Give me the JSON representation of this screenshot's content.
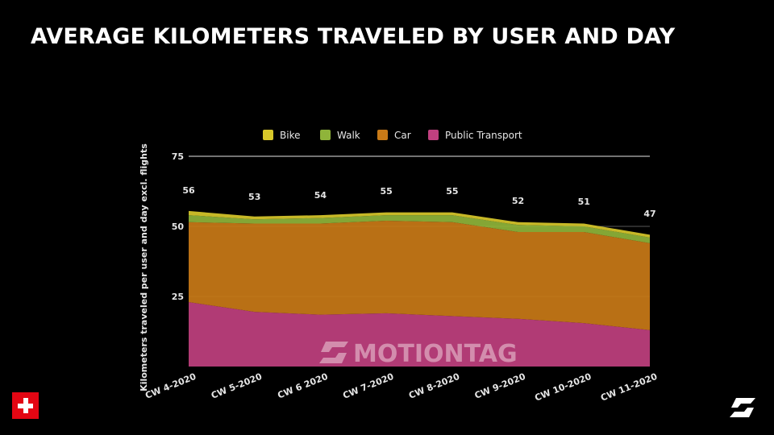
{
  "title": "AVERAGE KILOMETERS TRAVELED BY USER AND DAY",
  "watermark": "MOTIONTAG",
  "colors": {
    "background": "#000000",
    "bike": "#d8c82a",
    "walk": "#8fb43a",
    "car": "#c97a17",
    "public_transport": "#c0407f",
    "grid": "#ffffff",
    "flag": "#e30613"
  },
  "icons": [
    "swiss-flag-icon",
    "motiontag-logo-icon"
  ],
  "chart_data": {
    "type": "area",
    "stacked": true,
    "title": "",
    "xlabel": "",
    "ylabel": "Kilometers traveled per user and day excl. flights",
    "categories": [
      "CW 4-2020",
      "CW 5-2020",
      "CW 6 2020",
      "CW 7-2020",
      "CW 8-2020",
      "CW 9-2020",
      "CW 10-2020",
      "CW 11-2020"
    ],
    "yticks": [
      25,
      50,
      75
    ],
    "ylim": [
      0,
      75
    ],
    "grid": true,
    "legend": "top",
    "series": [
      {
        "name": "Public Transport",
        "color": "#c0407f",
        "values": [
          23,
          19.5,
          18.5,
          19,
          18,
          17,
          15.5,
          13
        ]
      },
      {
        "name": "Car",
        "color": "#c97a17",
        "values": [
          28.5,
          31.5,
          32.5,
          33,
          33.5,
          31,
          32.5,
          31
        ]
      },
      {
        "name": "Walk",
        "color": "#8fb43a",
        "values": [
          2.5,
          1.5,
          2,
          2,
          2.5,
          2.5,
          2,
          2
        ]
      },
      {
        "name": "Bike",
        "color": "#d8c82a",
        "values": [
          1.5,
          1,
          1,
          1,
          1,
          1,
          1,
          1
        ]
      }
    ],
    "totals": [
      56,
      53,
      54,
      55,
      55,
      52,
      51,
      47
    ],
    "legend_order": [
      "Bike",
      "Walk",
      "Car",
      "Public Transport"
    ]
  }
}
